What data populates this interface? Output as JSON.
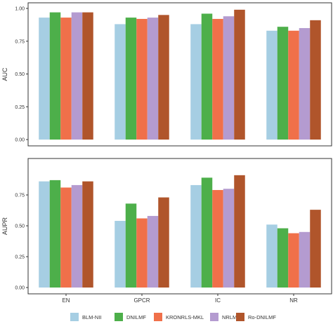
{
  "chart_data": [
    {
      "type": "bar",
      "ylabel": "AUC",
      "xlabel": "",
      "ylim": [
        0,
        1
      ],
      "yticks": [
        "0.00",
        "0.25",
        "0.50",
        "0.75",
        "1.00"
      ],
      "ytick_values": [
        0,
        0.25,
        0.5,
        0.75,
        1.0
      ],
      "grid": false,
      "categories": [
        "EN",
        "GPCR",
        "IC",
        "NR"
      ],
      "series": [
        {
          "name": "BLM-NII",
          "values": [
            0.93,
            0.88,
            0.88,
            0.83
          ]
        },
        {
          "name": "DNILMF",
          "values": [
            0.97,
            0.93,
            0.96,
            0.86
          ]
        },
        {
          "name": "KRONRLS-MKL",
          "values": [
            0.93,
            0.92,
            0.92,
            0.83
          ]
        },
        {
          "name": "NRLMF",
          "values": [
            0.97,
            0.93,
            0.94,
            0.85
          ]
        },
        {
          "name": "Ro-DNILMF",
          "values": [
            0.97,
            0.95,
            0.99,
            0.91
          ]
        }
      ]
    },
    {
      "type": "bar",
      "ylabel": "AUPR",
      "xlabel": "",
      "ylim": [
        0,
        1
      ],
      "yticks": [
        "0.00",
        "0.25",
        "0.50",
        "0.75"
      ],
      "ytick_values": [
        0,
        0.25,
        0.5,
        0.75
      ],
      "grid": false,
      "categories": [
        "EN",
        "GPCR",
        "IC",
        "NR"
      ],
      "series": [
        {
          "name": "BLM-NII",
          "values": [
            0.86,
            0.54,
            0.83,
            0.51
          ]
        },
        {
          "name": "DNILMF",
          "values": [
            0.87,
            0.68,
            0.89,
            0.48
          ]
        },
        {
          "name": "KRONRLS-MKL",
          "values": [
            0.81,
            0.56,
            0.79,
            0.44
          ]
        },
        {
          "name": "NRLMF",
          "values": [
            0.83,
            0.58,
            0.8,
            0.45
          ]
        },
        {
          "name": "Ro-DNILMF",
          "values": [
            0.86,
            0.73,
            0.91,
            0.63
          ]
        }
      ]
    }
  ],
  "legend": {
    "position": "bottom",
    "items": [
      {
        "name": "BLM-NII",
        "color": "#a6cee3"
      },
      {
        "name": "DNILMF",
        "color": "#4daf4a"
      },
      {
        "name": "KRONRLS-MKL",
        "color": "#f0704a"
      },
      {
        "name": "NRLMF",
        "color": "#b49bd0"
      },
      {
        "name": "Ro-DNILMF",
        "color": "#b0552b"
      }
    ]
  }
}
